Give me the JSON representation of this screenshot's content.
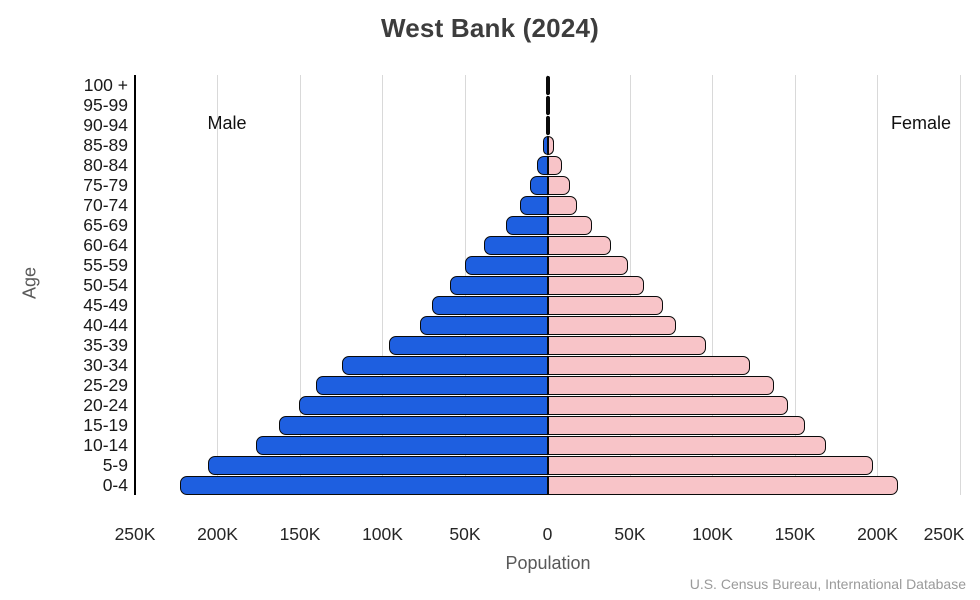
{
  "title": "West Bank (2024)",
  "labels": {
    "male": "Male",
    "female": "Female",
    "y_axis": "Age",
    "x_axis": "Population",
    "source": "U.S. Census Bureau, International Database"
  },
  "colors": {
    "male_bar": "#1e5fe0",
    "female_bar": "#f8c4c8",
    "bar_outline": "#0a0a0a",
    "gridline": "#d9d9d9",
    "axis_line": "#000000",
    "title_text": "#3d3d3d",
    "tick_text": "#262626",
    "muted_text": "#595959",
    "source_text": "#9a9a9a"
  },
  "chart_data": {
    "type": "bar",
    "subtype": "population-pyramid",
    "title": "West Bank (2024)",
    "xlabel": "Population",
    "ylabel": "Age",
    "grid": true,
    "x_tick_step": 50000,
    "x_max_each_side": 250000,
    "x_tick_labels": [
      "250K",
      "200K",
      "150K",
      "100K",
      "50K",
      "0",
      "50K",
      "100K",
      "150K",
      "200K",
      "250K"
    ],
    "categories": [
      "100 +",
      "95-99",
      "90-94",
      "85-89",
      "80-84",
      "75-79",
      "70-74",
      "65-69",
      "60-64",
      "55-59",
      "50-54",
      "45-49",
      "40-44",
      "35-39",
      "30-34",
      "25-29",
      "20-24",
      "15-19",
      "10-14",
      "5-9",
      "0-4"
    ],
    "series": [
      {
        "name": "Male",
        "side": "left",
        "values": [
          30,
          200,
          900,
          2800,
          6200,
          10500,
          16600,
          25200,
          38500,
          50000,
          59000,
          70000,
          77500,
          96000,
          124500,
          140500,
          150500,
          162500,
          176500,
          206000,
          222500
        ]
      },
      {
        "name": "Female",
        "side": "right",
        "values": [
          80,
          400,
          1500,
          4100,
          8600,
          13500,
          17900,
          26800,
          38400,
          48500,
          58500,
          69800,
          78000,
          96000,
          123000,
          137000,
          146000,
          156000,
          169000,
          197500,
          212500
        ]
      }
    ]
  }
}
